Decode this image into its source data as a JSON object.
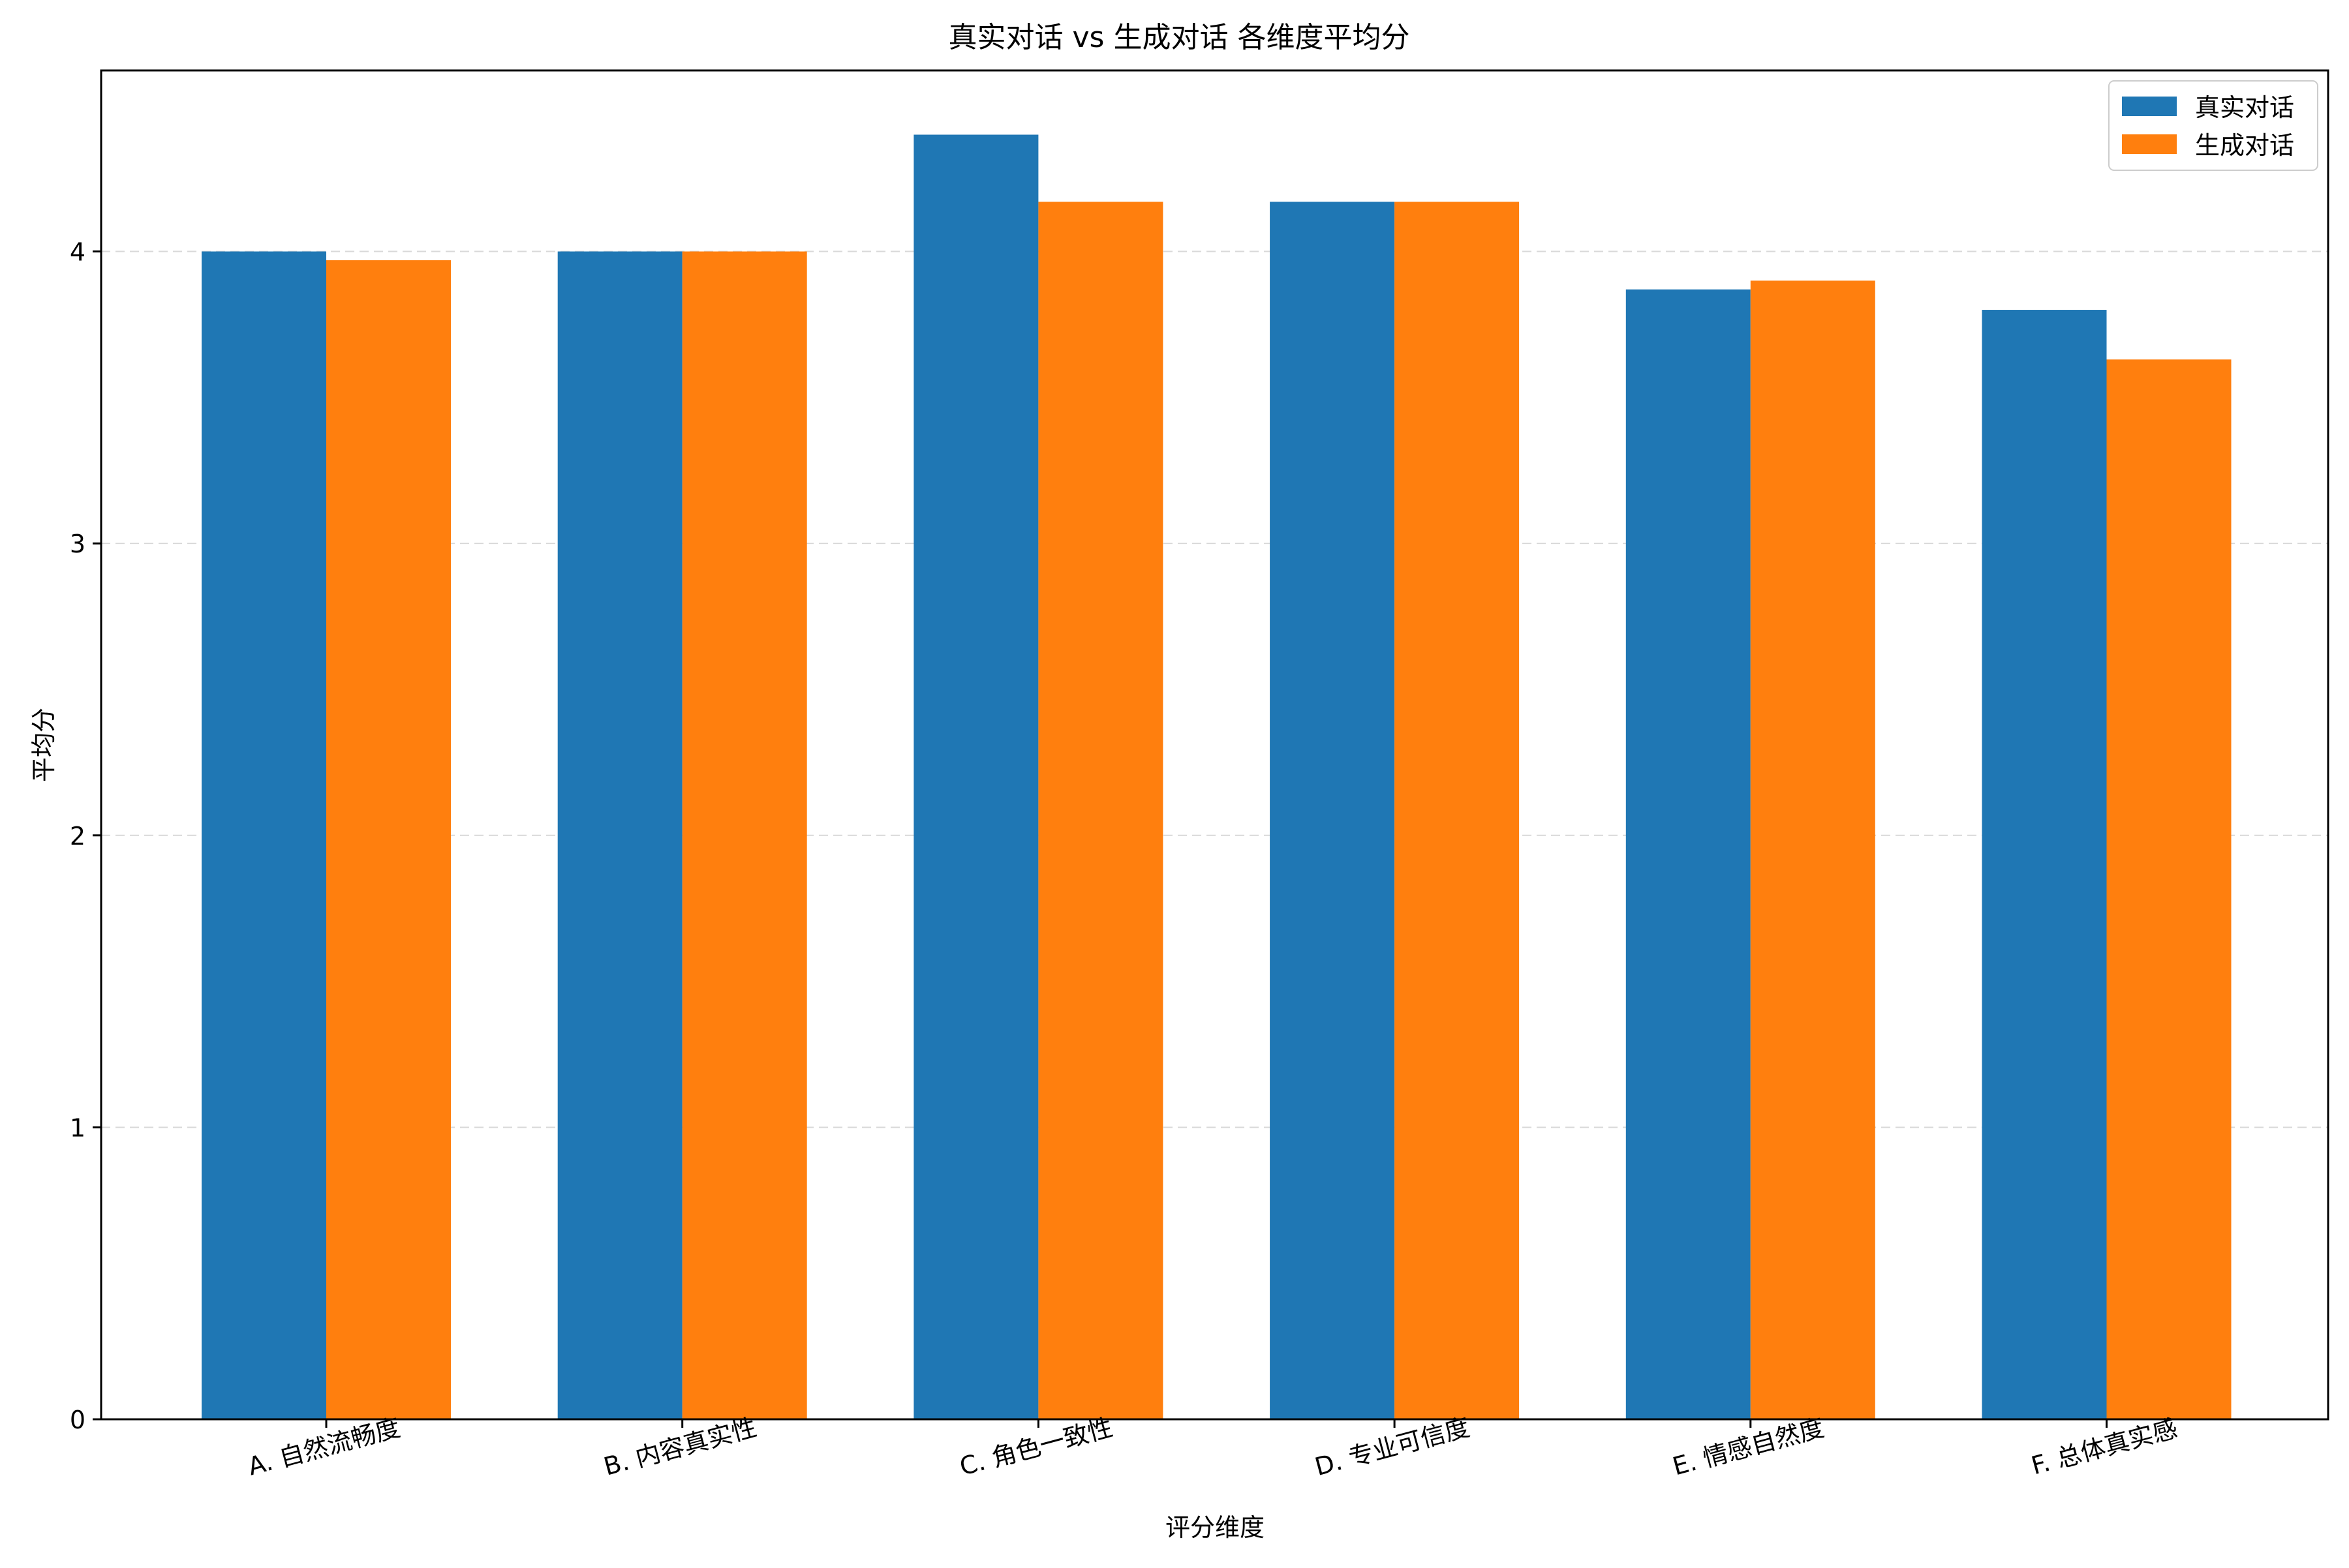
{
  "chart_data": {
    "type": "bar",
    "title": "真实对话 vs 生成对话 各维度平均分",
    "xlabel": "评分维度",
    "ylabel": "平均分",
    "categories": [
      "A. 自然流畅度",
      "B. 内容真实性",
      "C. 角色一致性",
      "D. 专业可信度",
      "E. 情感自然度",
      "F. 总体真实感"
    ],
    "series": [
      {
        "name": "真实对话",
        "color": "#1f77b4",
        "values": [
          4.0,
          4.0,
          4.4,
          4.17,
          3.87,
          3.8
        ]
      },
      {
        "name": "生成对话",
        "color": "#ff7f0e",
        "values": [
          3.97,
          4.0,
          4.17,
          4.17,
          3.9,
          3.63
        ]
      }
    ],
    "ylim": [
      0,
      4.62
    ],
    "yticks": [
      0,
      1,
      2,
      3,
      4
    ],
    "grid": {
      "y": true,
      "style": "dashed"
    },
    "legend_position": "top-right"
  }
}
